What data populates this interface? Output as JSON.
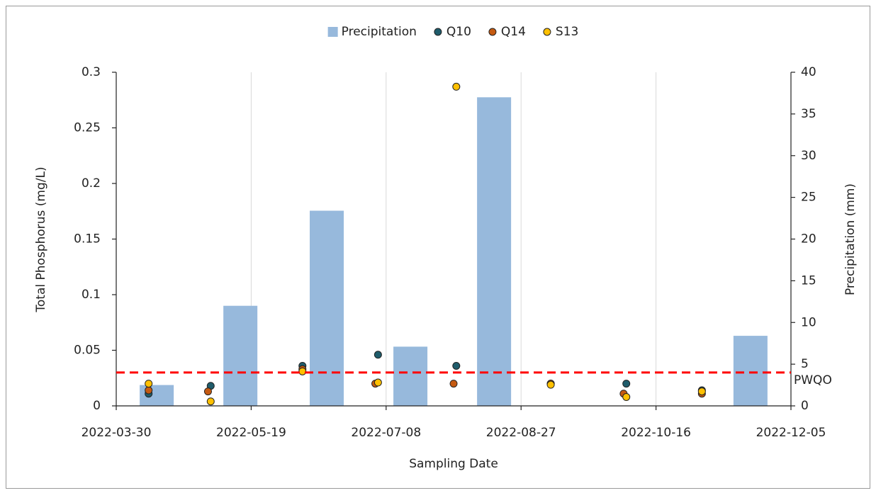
{
  "chart_data": {
    "type": "combo",
    "xlabel": "Sampling Date",
    "ylabel": "Total Phosphorus (mg/L)",
    "y2label": "Precipitation (mm)",
    "xlim": [
      "2022-03-30",
      "2022-12-05"
    ],
    "xticks": [
      "2022-03-30",
      "2022-05-19",
      "2022-07-08",
      "2022-08-27",
      "2022-10-16",
      "2022-12-05"
    ],
    "ylim": [
      0,
      0.3
    ],
    "yticks": [
      0,
      0.05,
      0.1,
      0.15,
      0.2,
      0.25,
      0.3
    ],
    "y2lim": [
      0,
      40
    ],
    "y2ticks": [
      0,
      5,
      10,
      15,
      20,
      25,
      30,
      35,
      40
    ],
    "grid": "x",
    "legend": "top",
    "reference_lines": [
      {
        "label": "PWQO",
        "value": 0.03,
        "color": "#ff0000"
      }
    ],
    "series": [
      {
        "name": "Precipitation",
        "type": "bar",
        "axis": "y2",
        "color": "#97b9dc",
        "x": [
          "2022-04-14",
          "2022-05-15",
          "2022-06-16",
          "2022-07-17",
          "2022-08-17",
          "2022-11-20"
        ],
        "values": [
          2.5,
          12.0,
          23.4,
          7.1,
          37.0,
          8.4
        ]
      },
      {
        "name": "Q10",
        "type": "scatter",
        "axis": "y",
        "color": "#1f5c6b",
        "x": [
          "2022-04-11",
          "2022-05-04",
          "2022-06-07",
          "2022-07-05",
          "2022-08-03",
          "2022-09-07",
          "2022-10-05",
          "2022-11-02"
        ],
        "values": [
          0.011,
          0.018,
          0.036,
          0.046,
          0.036,
          0.02,
          0.02,
          0.014
        ]
      },
      {
        "name": "Q14",
        "type": "scatter",
        "axis": "y",
        "color": "#c55a11",
        "x": [
          "2022-04-11",
          "2022-05-03",
          "2022-06-07",
          "2022-07-04",
          "2022-08-02",
          "2022-09-07",
          "2022-10-04",
          "2022-11-02"
        ],
        "values": [
          0.014,
          0.013,
          0.033,
          0.02,
          0.02,
          0.02,
          0.011,
          0.011
        ]
      },
      {
        "name": "S13",
        "type": "scatter",
        "axis": "y",
        "color": "#ffc000",
        "x": [
          "2022-04-11",
          "2022-05-04",
          "2022-06-07",
          "2022-07-05",
          "2022-08-03",
          "2022-09-07",
          "2022-10-05",
          "2022-11-02"
        ],
        "values": [
          0.02,
          0.004,
          0.031,
          0.021,
          0.287,
          0.019,
          0.008,
          0.013
        ]
      }
    ]
  }
}
